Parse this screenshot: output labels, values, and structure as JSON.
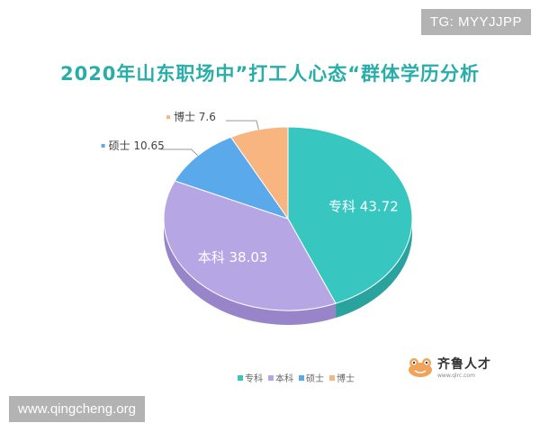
{
  "watermark_top": "TG: MYYJJPP",
  "watermark_bottom": "www.qingcheng.org",
  "logo": {
    "name": "齐鲁人才",
    "url": "www.qlrc.com"
  },
  "chart_data": {
    "type": "pie",
    "title": "2020年山东职场中”打工人心态“群体学历分析",
    "categories": [
      "专科",
      "本科",
      "硕士",
      "博士"
    ],
    "values": [
      43.72,
      38.03,
      10.65,
      7.6
    ],
    "value_labels": [
      "43.72",
      "38.03",
      "10.65",
      "7.6"
    ],
    "colors": [
      "#37c6c0",
      "#b7a6e4",
      "#5aa9ea",
      "#f8b57f"
    ],
    "side_colors": [
      "#2aa39e",
      "#9885c9",
      "#3f8ccc",
      "#d8955f"
    ],
    "style": "3d",
    "legend": {
      "position": "bottom-right",
      "entries": [
        "专科",
        "本科",
        "硕士",
        "博士"
      ]
    },
    "labels_inside": [
      true,
      true,
      false,
      false
    ]
  }
}
